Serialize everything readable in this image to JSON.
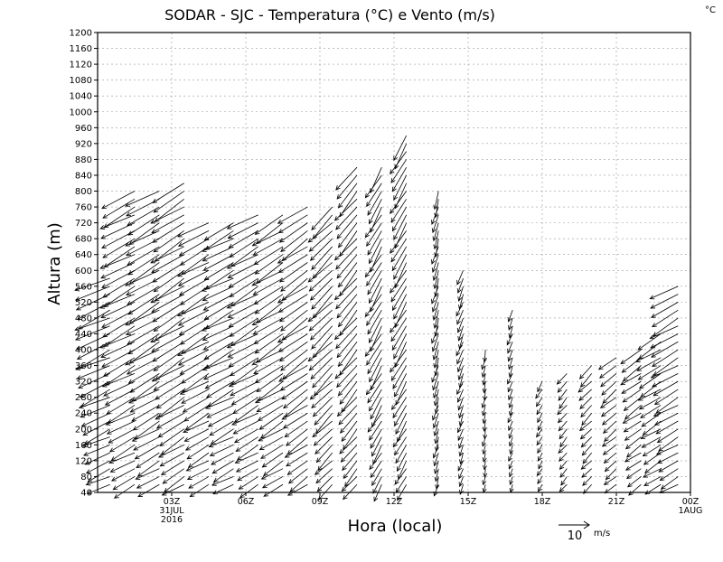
{
  "chart_data": {
    "type": "wind-barb-profile",
    "title": "SODAR - SJC - Temperatura (°C) e Vento (m/s)",
    "unit_corner": "°C",
    "xlabel": "Hora (local)",
    "ylabel": "Altura (m)",
    "x_ticks": [
      {
        "hour": 3,
        "label": "03Z",
        "sublabels": [
          "31JUL",
          "2016"
        ]
      },
      {
        "hour": 6,
        "label": "06Z",
        "sublabels": []
      },
      {
        "hour": 9,
        "label": "09Z",
        "sublabels": []
      },
      {
        "hour": 12,
        "label": "12Z",
        "sublabels": []
      },
      {
        "hour": 15,
        "label": "15Z",
        "sublabels": []
      },
      {
        "hour": 18,
        "label": "18Z",
        "sublabels": []
      },
      {
        "hour": 21,
        "label": "21Z",
        "sublabels": []
      },
      {
        "hour": 24,
        "label": "00Z",
        "sublabels": [
          "1AUG"
        ]
      }
    ],
    "x_range_hours": [
      0,
      24
    ],
    "y_range_m": [
      40,
      1200
    ],
    "y_tick_step_m": 40,
    "grid": true,
    "legend_label": "10",
    "legend_unit": "m/s",
    "legend_speed_ms": 10,
    "profile_step_m": 20,
    "profiles": [
      {
        "hour": 0.5,
        "top_m": 580,
        "dir_deg": 65,
        "speed_ms": 12
      },
      {
        "hour": 1.5,
        "top_m": 800,
        "dir_deg": 62,
        "speed_ms": 12
      },
      {
        "hour": 2.5,
        "top_m": 800,
        "dir_deg": 60,
        "speed_ms": 12
      },
      {
        "hour": 3.5,
        "top_m": 820,
        "dir_deg": 58,
        "speed_ms": 12
      },
      {
        "hour": 4.5,
        "top_m": 720,
        "dir_deg": 60,
        "speed_ms": 11
      },
      {
        "hour": 5.5,
        "top_m": 720,
        "dir_deg": 62,
        "speed_ms": 11
      },
      {
        "hour": 6.5,
        "top_m": 740,
        "dir_deg": 60,
        "speed_ms": 11
      },
      {
        "hour": 7.5,
        "top_m": 740,
        "dir_deg": 58,
        "speed_ms": 11
      },
      {
        "hour": 8.5,
        "top_m": 760,
        "dir_deg": 55,
        "speed_ms": 11
      },
      {
        "hour": 9.5,
        "top_m": 760,
        "dir_deg": 45,
        "speed_ms": 10
      },
      {
        "hour": 10.5,
        "top_m": 860,
        "dir_deg": 40,
        "speed_ms": 10
      },
      {
        "hour": 11.5,
        "top_m": 860,
        "dir_deg": 30,
        "speed_ms": 9
      },
      {
        "hour": 12.5,
        "top_m": 940,
        "dir_deg": 30,
        "speed_ms": 9
      },
      {
        "hour": 13.8,
        "top_m": 800,
        "dir_deg": 15,
        "speed_ms": 6
      },
      {
        "hour": 14.8,
        "top_m": 600,
        "dir_deg": 20,
        "speed_ms": 5
      },
      {
        "hour": 15.7,
        "top_m": 400,
        "dir_deg": 10,
        "speed_ms": 4
      },
      {
        "hour": 16.8,
        "top_m": 500,
        "dir_deg": 20,
        "speed_ms": 4
      },
      {
        "hour": 18.0,
        "top_m": 320,
        "dir_deg": 30,
        "speed_ms": 4
      },
      {
        "hour": 19.0,
        "top_m": 340,
        "dir_deg": 40,
        "speed_ms": 5
      },
      {
        "hour": 20.0,
        "top_m": 360,
        "dir_deg": 45,
        "speed_ms": 6
      },
      {
        "hour": 21.0,
        "top_m": 380,
        "dir_deg": 50,
        "speed_ms": 7
      },
      {
        "hour": 22.0,
        "top_m": 400,
        "dir_deg": 55,
        "speed_ms": 8
      },
      {
        "hour": 22.8,
        "top_m": 440,
        "dir_deg": 58,
        "speed_ms": 9
      },
      {
        "hour": 23.5,
        "top_m": 560,
        "dir_deg": 60,
        "speed_ms": 10
      }
    ]
  }
}
